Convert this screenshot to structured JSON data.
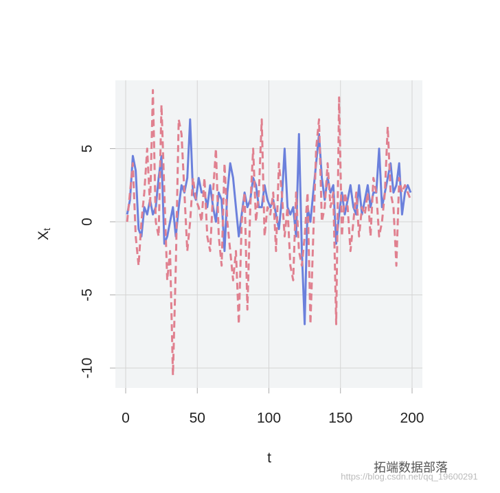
{
  "chart_data": {
    "type": "line",
    "xlabel": "t",
    "ylabel": {
      "base": "X",
      "subscript": "t"
    },
    "x": [
      1,
      3,
      5,
      7,
      9,
      11,
      13,
      15,
      17,
      19,
      21,
      23,
      25,
      27,
      29,
      31,
      33,
      35,
      37,
      39,
      41,
      43,
      45,
      47,
      49,
      51,
      53,
      55,
      57,
      59,
      61,
      63,
      65,
      67,
      69,
      71,
      73,
      75,
      77,
      79,
      81,
      83,
      85,
      87,
      89,
      91,
      93,
      95,
      97,
      99,
      101,
      103,
      105,
      107,
      109,
      111,
      113,
      115,
      117,
      119,
      121,
      123,
      125,
      127,
      129,
      131,
      133,
      135,
      137,
      139,
      141,
      143,
      145,
      147,
      149,
      151,
      153,
      155,
      157,
      159,
      161,
      163,
      165,
      167,
      169,
      171,
      173,
      175,
      177,
      179,
      181,
      183,
      185,
      187,
      189,
      191,
      193,
      195,
      197,
      199
    ],
    "series": [
      {
        "color": "#6b80dc",
        "dash": false,
        "values": [
          0.5,
          1.5,
          4.5,
          3.5,
          -0.5,
          -1,
          1,
          0.5,
          1.5,
          0.5,
          1,
          3,
          4.5,
          -1.5,
          -1,
          0,
          1,
          -1,
          1,
          2.5,
          2,
          3,
          7,
          2,
          1.5,
          3,
          2,
          2,
          1,
          2.5,
          1,
          0,
          2,
          1.5,
          -2,
          2,
          4,
          3,
          1,
          -1,
          0.5,
          2,
          1,
          1.5,
          3,
          2.5,
          1,
          1,
          2.5,
          1.5,
          1,
          1.5,
          0.5,
          -0.5,
          1.5,
          5,
          1,
          0.5,
          1,
          -1,
          6,
          -2,
          -7,
          1,
          0,
          2,
          4,
          6,
          3,
          1.5,
          3,
          2,
          2.5,
          -1.5,
          0.5,
          2,
          0.5,
          1.5,
          2.5,
          1,
          0.5,
          2.5,
          0.5,
          1.5,
          2.5,
          1,
          2,
          2,
          5,
          1,
          2,
          3,
          4,
          2,
          2.5,
          4,
          0.5,
          2,
          2.5,
          2
        ]
      },
      {
        "color": "#e0808f",
        "dash": true,
        "values": [
          0,
          2,
          4,
          -1,
          -3,
          0,
          2,
          5,
          1,
          9,
          0,
          -1,
          8,
          2,
          -4,
          -2,
          -10.5,
          -3,
          7,
          6,
          2,
          -2,
          0,
          3,
          1.5,
          1,
          0,
          3,
          -1,
          -2,
          2,
          5,
          -1,
          -3,
          4,
          0,
          -2,
          -4,
          -2,
          -7,
          0,
          2,
          -6,
          1,
          5,
          0,
          2,
          7,
          -1,
          1,
          0.5,
          2,
          -2,
          4,
          2,
          -1,
          1,
          -3,
          -4,
          2,
          -2,
          -3,
          -1,
          2,
          -7,
          -1,
          5,
          7,
          0,
          1,
          4,
          1,
          2,
          -7,
          8.5,
          -1,
          2,
          1,
          -2,
          0,
          2,
          -1,
          1,
          0.5,
          2,
          -1,
          3,
          2,
          -1,
          0,
          2,
          6.5,
          2,
          1,
          -3,
          3,
          2,
          2.5,
          2,
          1.5
        ]
      }
    ],
    "xlim": [
      -7.2,
      207.2
    ],
    "ylim": [
      -11.36,
      9.67
    ],
    "xticks": [
      0,
      50,
      100,
      150,
      200
    ],
    "yticks": [
      -10,
      -5,
      0,
      5
    ],
    "grid": true,
    "background": "#f2f4f5",
    "watermark": [
      "拓端数据部落",
      "https://blog.csdn.net/qq_19600291"
    ]
  }
}
